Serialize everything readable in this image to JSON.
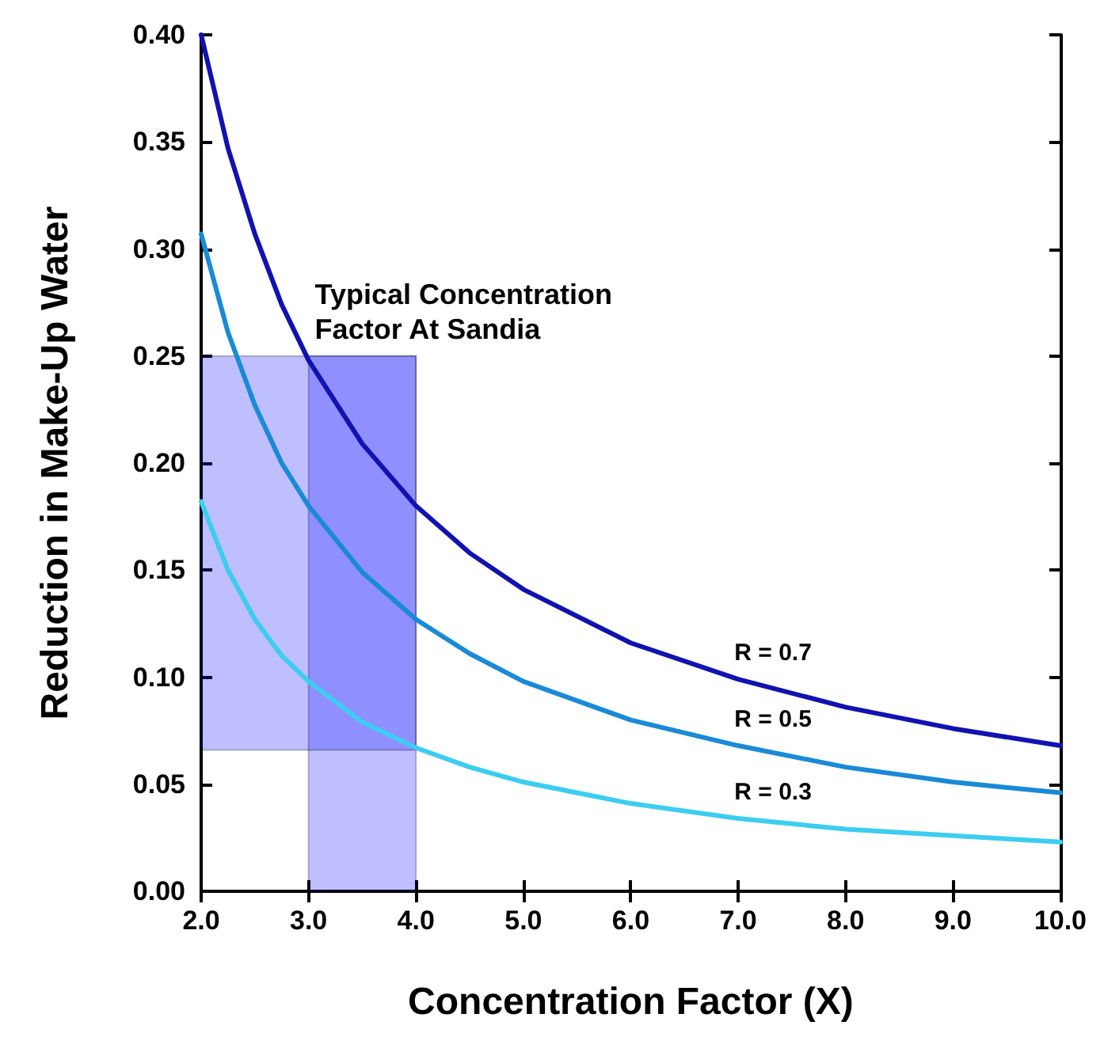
{
  "chart_data": {
    "type": "line",
    "xlabel": "Concentration Factor (X)",
    "ylabel": "Reduction in Make-Up Water",
    "x": [
      2,
      2.25,
      2.5,
      2.75,
      3,
      3.5,
      4,
      4.5,
      5,
      6,
      7,
      8,
      9,
      10
    ],
    "series": [
      {
        "name": "R = 0.7",
        "color": "#1212b0",
        "values": [
          0.4,
          0.347,
          0.307,
          0.274,
          0.248,
          0.209,
          0.18,
          0.158,
          0.141,
          0.116,
          0.099,
          0.086,
          0.076,
          0.068
        ]
      },
      {
        "name": "R = 0.5",
        "color": "#1a8ad6",
        "values": [
          0.307,
          0.261,
          0.227,
          0.2,
          0.18,
          0.149,
          0.127,
          0.111,
          0.098,
          0.08,
          0.068,
          0.058,
          0.051,
          0.046
        ]
      },
      {
        "name": "R = 0.3",
        "color": "#3ccdf0",
        "values": [
          0.182,
          0.15,
          0.127,
          0.11,
          0.098,
          0.079,
          0.067,
          0.058,
          0.051,
          0.041,
          0.034,
          0.029,
          0.026,
          0.023
        ]
      }
    ],
    "xlim": [
      2,
      10
    ],
    "xticks": [
      {
        "value": 2,
        "label": "2.0"
      },
      {
        "value": 3,
        "label": "3.0"
      },
      {
        "value": 4,
        "label": "4.0"
      },
      {
        "value": 5,
        "label": "5.0"
      },
      {
        "value": 6,
        "label": "6.0"
      },
      {
        "value": 7,
        "label": "7.0"
      },
      {
        "value": 8,
        "label": "8.0"
      },
      {
        "value": 9,
        "label": "9.0"
      },
      {
        "value": 10,
        "label": "10.0"
      }
    ],
    "ylim": [
      0,
      0.4
    ],
    "yticks": [
      {
        "value": 0,
        "label": "0.00"
      },
      {
        "value": 0.05,
        "label": "0.05"
      },
      {
        "value": 0.1,
        "label": "0.10"
      },
      {
        "value": 0.15,
        "label": "0.15"
      },
      {
        "value": 0.2,
        "label": "0.20"
      },
      {
        "value": 0.25,
        "label": "0.25"
      },
      {
        "value": 0.3,
        "label": "0.30"
      },
      {
        "value": 0.35,
        "label": "0.35"
      },
      {
        "value": 0.4,
        "label": "0.40"
      }
    ],
    "bands": [
      {
        "axis": "x",
        "from": 3,
        "to": 4,
        "color": "#0000ff"
      },
      {
        "axis": "y",
        "from": 0.066,
        "to": 0.25,
        "color": "#0000ff"
      }
    ],
    "annotations": [
      "Typical Concentration Factor At Sandia"
    ],
    "grid": false,
    "legend": false,
    "marker": "none",
    "line_style": "solid"
  }
}
